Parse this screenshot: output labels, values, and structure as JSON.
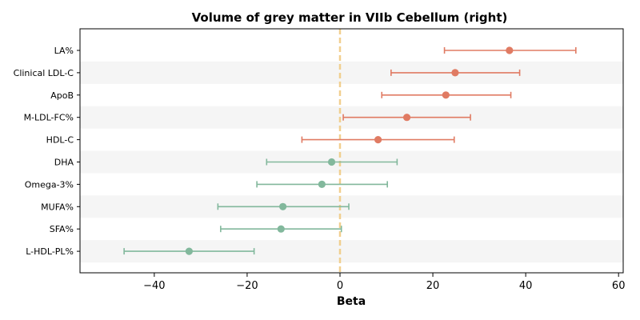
{
  "chart_data": {
    "type": "forest",
    "title": "Volume of grey matter in VIIb Cebellum (right)",
    "xlabel": "Beta",
    "xlim": [
      -56,
      61
    ],
    "xticks": [
      -40,
      -20,
      0,
      20,
      40,
      60
    ],
    "xtick_labels": [
      "−40",
      "−20",
      "0",
      "20",
      "40",
      "60"
    ],
    "reference_line": 0,
    "colors": {
      "positive": "#e07b63",
      "negative": "#82b89c",
      "reference_line": "#f1cf8f",
      "stripe": "#f5f5f5"
    },
    "series": [
      {
        "label": "LA%",
        "beta": 36.5,
        "lower": 22.5,
        "upper": 50.8
      },
      {
        "label": "Clinical LDL-C",
        "beta": 24.8,
        "lower": 11.0,
        "upper": 38.7
      },
      {
        "label": "ApoB",
        "beta": 22.8,
        "lower": 9.0,
        "upper": 36.8
      },
      {
        "label": "M-LDL-FC%",
        "beta": 14.4,
        "lower": 0.7,
        "upper": 28.1
      },
      {
        "label": "HDL-C",
        "beta": 8.2,
        "lower": -8.2,
        "upper": 24.6
      },
      {
        "label": "DHA",
        "beta": -1.8,
        "lower": -15.8,
        "upper": 12.3
      },
      {
        "label": "Omega-3%",
        "beta": -3.9,
        "lower": -17.9,
        "upper": 10.2
      },
      {
        "label": "MUFA%",
        "beta": -12.3,
        "lower": -26.3,
        "upper": 1.9
      },
      {
        "label": "SFA%",
        "beta": -12.7,
        "lower": -25.7,
        "upper": 0.3
      },
      {
        "label": "L-HDL-PL%",
        "beta": -32.5,
        "lower": -46.5,
        "upper": -18.5
      }
    ]
  }
}
